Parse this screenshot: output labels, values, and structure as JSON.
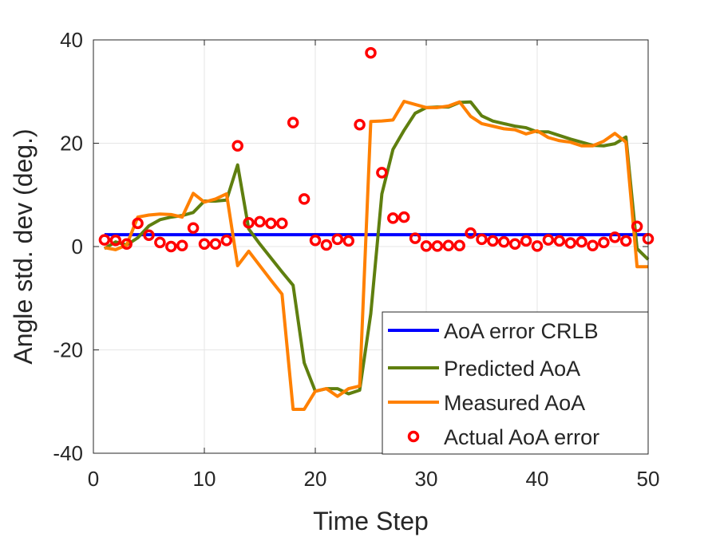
{
  "chart_data": {
    "type": "line",
    "title": "",
    "xlabel": "Time Step",
    "ylabel": "Angle std. dev (deg.)",
    "xlim": [
      0,
      50
    ],
    "ylim": [
      -40,
      40
    ],
    "xticks": [
      0,
      10,
      20,
      30,
      40,
      50
    ],
    "yticks": [
      -40,
      -20,
      0,
      20,
      40
    ],
    "xtick_labels": [
      "0",
      "10",
      "20",
      "30",
      "40",
      "50"
    ],
    "ytick_labels": [
      "-40",
      "-20",
      "0",
      "20",
      "40"
    ],
    "grid": true,
    "legend_position": "bottom-right",
    "x": [
      1,
      2,
      3,
      4,
      5,
      6,
      7,
      8,
      9,
      10,
      11,
      12,
      13,
      14,
      15,
      16,
      17,
      18,
      19,
      20,
      21,
      22,
      23,
      24,
      25,
      26,
      27,
      28,
      29,
      30,
      31,
      32,
      33,
      34,
      35,
      36,
      37,
      38,
      39,
      40,
      41,
      42,
      43,
      44,
      45,
      46,
      47,
      48,
      49,
      50
    ],
    "series": [
      {
        "name": "AoA error CRLB",
        "kind": "line",
        "color": "#0000ff",
        "values": [
          2.3,
          2.3,
          2.3,
          2.3,
          2.3,
          2.3,
          2.3,
          2.3,
          2.3,
          2.3,
          2.3,
          2.3,
          2.3,
          2.3,
          2.3,
          2.3,
          2.3,
          2.3,
          2.3,
          2.3,
          2.3,
          2.3,
          2.3,
          2.3,
          2.3,
          2.3,
          2.3,
          2.3,
          2.3,
          2.3,
          2.3,
          2.3,
          2.3,
          2.3,
          2.3,
          2.3,
          2.3,
          2.3,
          2.3,
          2.3,
          2.3,
          2.3,
          2.3,
          2.3,
          2.3,
          2.3,
          2.3,
          2.3,
          2.3,
          2.3
        ]
      },
      {
        "name": "Predicted AoA",
        "kind": "line",
        "color": "#5f7f0f",
        "values": [
          -0.4,
          0.9,
          0.3,
          1.7,
          4.0,
          5.2,
          5.7,
          6.0,
          6.6,
          8.8,
          8.8,
          9.0,
          15.8,
          3.4,
          0.5,
          -2.2,
          -4.9,
          -7.5,
          -22.5,
          -28,
          -27.5,
          -27.5,
          -28.5,
          -27.8,
          -13,
          10.2,
          18.8,
          22.5,
          25.8,
          26.9,
          27,
          27,
          27.9,
          28,
          25.3,
          24.3,
          23.8,
          23.3,
          23.0,
          22.2,
          22.2,
          21.5,
          20.8,
          20.2,
          19.6,
          19.5,
          19.9,
          21.2,
          -0.4,
          -2.5
        ]
      },
      {
        "name": "Measured AoA",
        "kind": "line",
        "color": "#ff8000",
        "values": [
          -0.2,
          -0.6,
          0.3,
          5.7,
          6.1,
          6.3,
          6.2,
          5.7,
          10.3,
          8.6,
          9.2,
          10.2,
          -3.7,
          -0.9,
          -3.7,
          -6.5,
          -9.2,
          -31.5,
          -31.5,
          -28,
          -27.5,
          -29,
          -27.5,
          -27,
          24.2,
          24.3,
          24.5,
          28.1,
          27.5,
          26.9,
          26.9,
          27.2,
          28,
          25.2,
          23.8,
          23.3,
          22.8,
          22.6,
          21.8,
          22.4,
          21.1,
          20.5,
          20.2,
          19.5,
          19.5,
          20.4,
          21.9,
          20.2,
          -3.9,
          -3.9
        ]
      },
      {
        "name": "Actual AoA error",
        "kind": "scatter",
        "color": "#ff0000",
        "values": [
          1.3,
          1.2,
          0.5,
          4.5,
          2.2,
          0.8,
          0,
          0.2,
          3.6,
          0.5,
          0.5,
          1.2,
          19.5,
          4.6,
          4.8,
          4.5,
          4.5,
          24,
          9.2,
          1.2,
          0.3,
          1.4,
          1.1,
          23.6,
          37.5,
          14.3,
          5.5,
          5.7,
          1.6,
          0.1,
          0.1,
          0.2,
          0.2,
          2.6,
          1.4,
          1.1,
          0.9,
          0.5,
          1.1,
          0.1,
          1.3,
          1.1,
          0.7,
          0.9,
          0.2,
          0.8,
          1.8,
          1.1,
          3.9,
          1.5
        ]
      }
    ]
  }
}
